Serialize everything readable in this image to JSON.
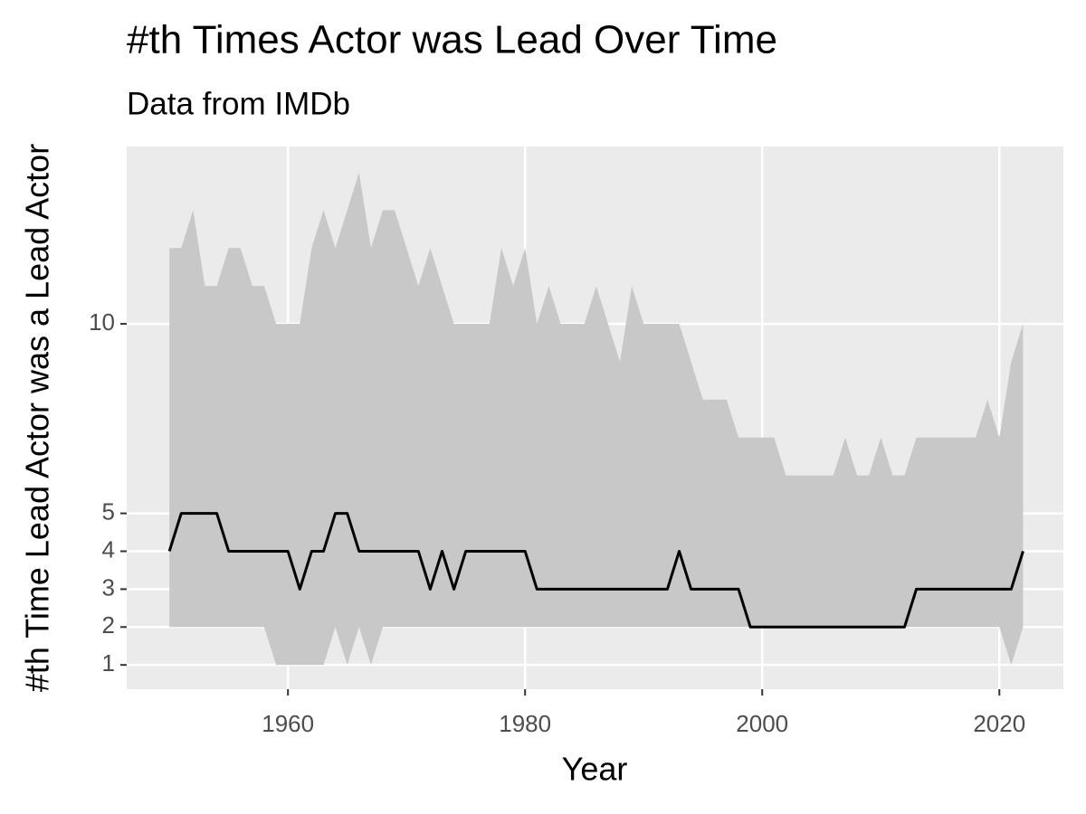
{
  "chart_data": {
    "type": "line",
    "title": "#th Times Actor was Lead Over Time",
    "subtitle": "Data from IMDb",
    "x_label": "Year",
    "y_label": "#th Time Lead Actor was a Lead Actor",
    "x": [
      1950,
      1951,
      1952,
      1953,
      1954,
      1955,
      1956,
      1957,
      1958,
      1959,
      1960,
      1961,
      1962,
      1963,
      1964,
      1965,
      1966,
      1967,
      1968,
      1969,
      1970,
      1971,
      1972,
      1973,
      1974,
      1975,
      1976,
      1977,
      1978,
      1979,
      1980,
      1981,
      1982,
      1983,
      1984,
      1985,
      1986,
      1987,
      1988,
      1989,
      1990,
      1991,
      1992,
      1993,
      1994,
      1995,
      1996,
      1997,
      1998,
      1999,
      2000,
      2001,
      2002,
      2003,
      2004,
      2005,
      2006,
      2007,
      2008,
      2009,
      2010,
      2011,
      2012,
      2013,
      2014,
      2015,
      2016,
      2017,
      2018,
      2019,
      2020,
      2021,
      2022
    ],
    "line": {
      "color": "#000000",
      "values": [
        4,
        5,
        5,
        5,
        5,
        4,
        4,
        4,
        4,
        4,
        4,
        3,
        4,
        4,
        5,
        5,
        4,
        4,
        4,
        4,
        4,
        4,
        3,
        4,
        3,
        4,
        4,
        4,
        4,
        4,
        4,
        3,
        3,
        3,
        3,
        3,
        3,
        3,
        3,
        3,
        3,
        3,
        3,
        4,
        3,
        3,
        3,
        3,
        3,
        2,
        2,
        2,
        2,
        2,
        2,
        2,
        2,
        2,
        2,
        2,
        2,
        2,
        2,
        3,
        3,
        3,
        3,
        3,
        3,
        3,
        3,
        3,
        4
      ]
    },
    "ribbon": {
      "color": "#c8c8c8",
      "low": [
        2,
        2,
        2,
        2,
        2,
        2,
        2,
        2,
        2,
        1,
        1,
        1,
        1,
        1,
        2,
        1,
        2,
        1,
        2,
        2,
        2,
        2,
        2,
        2,
        2,
        2,
        2,
        2,
        2,
        2,
        2,
        2,
        2,
        2,
        2,
        2,
        2,
        2,
        2,
        2,
        2,
        2,
        2,
        2,
        2,
        2,
        2,
        2,
        2,
        2,
        2,
        2,
        2,
        2,
        2,
        2,
        2,
        2,
        2,
        2,
        2,
        2,
        2,
        2,
        2,
        2,
        2,
        2,
        2,
        2,
        2,
        1,
        2
      ],
      "high": [
        12,
        12,
        13,
        11,
        11,
        12,
        12,
        11,
        11,
        10,
        10,
        10,
        12,
        13,
        12,
        13,
        14,
        12,
        13,
        13,
        12,
        11,
        12,
        11,
        10,
        10,
        10,
        10,
        12,
        11,
        12,
        10,
        11,
        10,
        10,
        10,
        11,
        10,
        9,
        11,
        10,
        10,
        10,
        10,
        9,
        8,
        8,
        8,
        7,
        7,
        7,
        7,
        6,
        6,
        6,
        6,
        6,
        7,
        6,
        6,
        7,
        6,
        6,
        7,
        7,
        7,
        7,
        7,
        7,
        8,
        7,
        9,
        10
      ]
    },
    "xlim": [
      1946.4,
      2025.4
    ],
    "xticks": [
      1960,
      1980,
      2000,
      2020
    ],
    "ylim": [
      0.36,
      14.68
    ],
    "yticks": [
      1,
      2,
      3,
      4,
      5,
      10
    ],
    "grid": true
  }
}
